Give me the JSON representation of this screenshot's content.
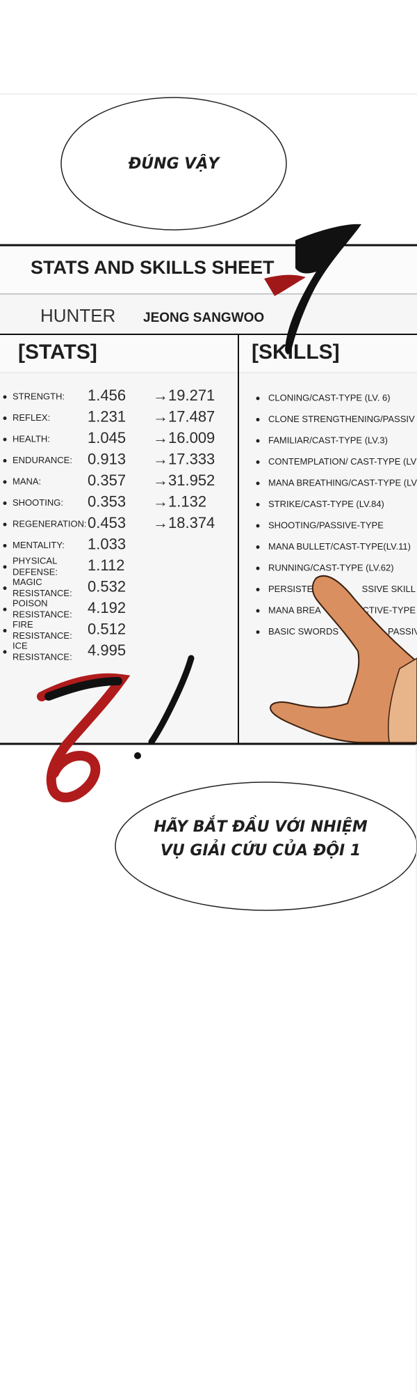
{
  "bubble_top": "ĐÚNG VẬY",
  "sheet": {
    "title": "STATS AND SKILLS SHEET",
    "hunter_label": "HUNTER",
    "hunter_name": "JEONG SANGWOO",
    "stats_header": "[STATS]",
    "skills_header": "[SKILLS]",
    "stats": [
      {
        "name": [
          "STRENGTH:"
        ],
        "value": 1.456,
        "next": "→19.271"
      },
      {
        "name": [
          "REFLEX:"
        ],
        "value": 1.231,
        "next": "→17.487"
      },
      {
        "name": [
          "HEALTH:"
        ],
        "value": 1.045,
        "next": "→16.009"
      },
      {
        "name": [
          "ENDURANCE:"
        ],
        "value": 0.913,
        "next": "→17.333"
      },
      {
        "name": [
          "MANA:"
        ],
        "value": 0.357,
        "next": "→31.952"
      },
      {
        "name": [
          "SHOOTING:"
        ],
        "value": 0.353,
        "next": "→1.132"
      },
      {
        "name": [
          "REGENERATION:"
        ],
        "value": 0.453,
        "next": "→18.374"
      },
      {
        "name": [
          "MENTALITY:"
        ],
        "value": 1.033
      },
      {
        "name": [
          "PHYSICAL",
          "DEFENSE:"
        ],
        "value": 1.112
      },
      {
        "name": [
          "MAGIC",
          "RESISTANCE:"
        ],
        "value": 0.532
      },
      {
        "name": [
          "POISON",
          "RESISTANCE:"
        ],
        "value": 4.192
      },
      {
        "name": [
          "FIRE",
          "RESISTANCE:"
        ],
        "value": 0.512
      },
      {
        "name": [
          "ICE",
          "RESISTANCE:"
        ],
        "value": 4.995
      }
    ],
    "skills": [
      [
        "CLONING/CAST-TYPE (LV. 6)"
      ],
      [
        "CLONE STRENGTHENING/PASSIV"
      ],
      [
        "FAMILIAR/CAST-TYPE (LV.3)"
      ],
      [
        "CONTEMPLATION/ CAST-TYPE (LV"
      ],
      [
        "MANA BREATHING/CAST-TYPE (LV"
      ],
      [
        "STRIKE/CAST-TYPE (LV.84)"
      ],
      [
        "SHOOTING/PASSIVE-TYPE"
      ],
      [
        "MANA BULLET/CAST-TYPE(LV.11)"
      ],
      [
        "RUNNING/CAST-TYPE (LV.62)"
      ],
      [
        "PERSISTE",
        "SSIVE SKILL"
      ],
      [
        "MANA BREA",
        "CTIVE-TYPE"
      ],
      [
        "BASIC SWORDS",
        "PASSIV"
      ]
    ]
  },
  "bubble_bottom": [
    "HÃY BẮT ĐẦU VỚI NHIỆM",
    "VỤ GIẢI CỨU CỦA ĐỘI 1"
  ]
}
